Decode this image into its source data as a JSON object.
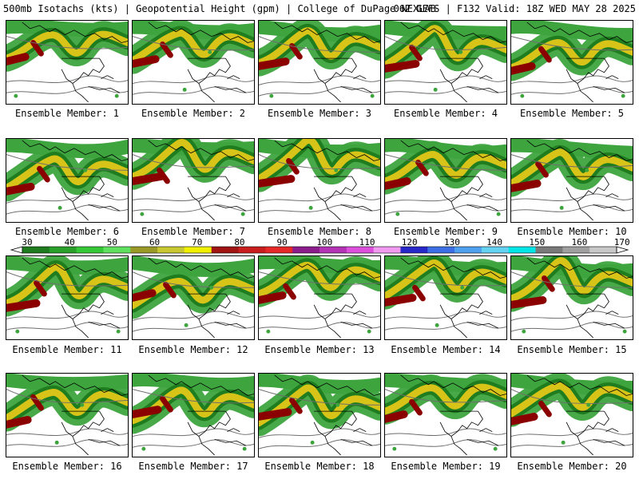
{
  "header": {
    "left": "500mb Isotachs (kts) | Geopotential Height (gpm) | College of DuPage NEXLAB",
    "right": "06Z GEFS | F132 Valid: 18Z WED MAY 28 2025"
  },
  "members": [
    {
      "label": "Ensemble Member: 1"
    },
    {
      "label": "Ensemble Member: 2"
    },
    {
      "label": "Ensemble Member: 3"
    },
    {
      "label": "Ensemble Member: 4"
    },
    {
      "label": "Ensemble Member: 5"
    },
    {
      "label": "Ensemble Member: 6"
    },
    {
      "label": "Ensemble Member: 7"
    },
    {
      "label": "Ensemble Member: 8"
    },
    {
      "label": "Ensemble Member: 9"
    },
    {
      "label": "Ensemble Member: 10"
    },
    {
      "label": "Ensemble Member: 11"
    },
    {
      "label": "Ensemble Member: 12"
    },
    {
      "label": "Ensemble Member: 13"
    },
    {
      "label": "Ensemble Member: 14"
    },
    {
      "label": "Ensemble Member: 15"
    },
    {
      "label": "Ensemble Member: 16"
    },
    {
      "label": "Ensemble Member: 17"
    },
    {
      "label": "Ensemble Member: 18"
    },
    {
      "label": "Ensemble Member: 19"
    },
    {
      "label": "Ensemble Member: 20"
    }
  ],
  "colorbar": {
    "labels": [
      "30",
      "40",
      "50",
      "60",
      "70",
      "80",
      "90",
      "100",
      "110",
      "120",
      "130",
      "140",
      "150",
      "160",
      "170"
    ],
    "colors": [
      "#1e7b1e",
      "#2aa02a",
      "#37c837",
      "#5fe05f",
      "#9a9a28",
      "#c8c832",
      "#f0f000",
      "#a01414",
      "#c81e1e",
      "#e62828",
      "#8c1e8c",
      "#b432b4",
      "#dc50dc",
      "#f09bf0",
      "#2828c8",
      "#3c6ee6",
      "#50a0f0",
      "#64d2f0",
      "#00e6e6",
      "#7a7a7a",
      "#a0a0a0",
      "#c8c8c8"
    ]
  },
  "map_colors": {
    "wind_light": "#3ea43e",
    "wind_mid": "#1f7d1f",
    "wind_core": "#8b0000",
    "wind_yellow": "#d8c418",
    "height_contour": "#6e6e6e",
    "coast": "#000000"
  }
}
